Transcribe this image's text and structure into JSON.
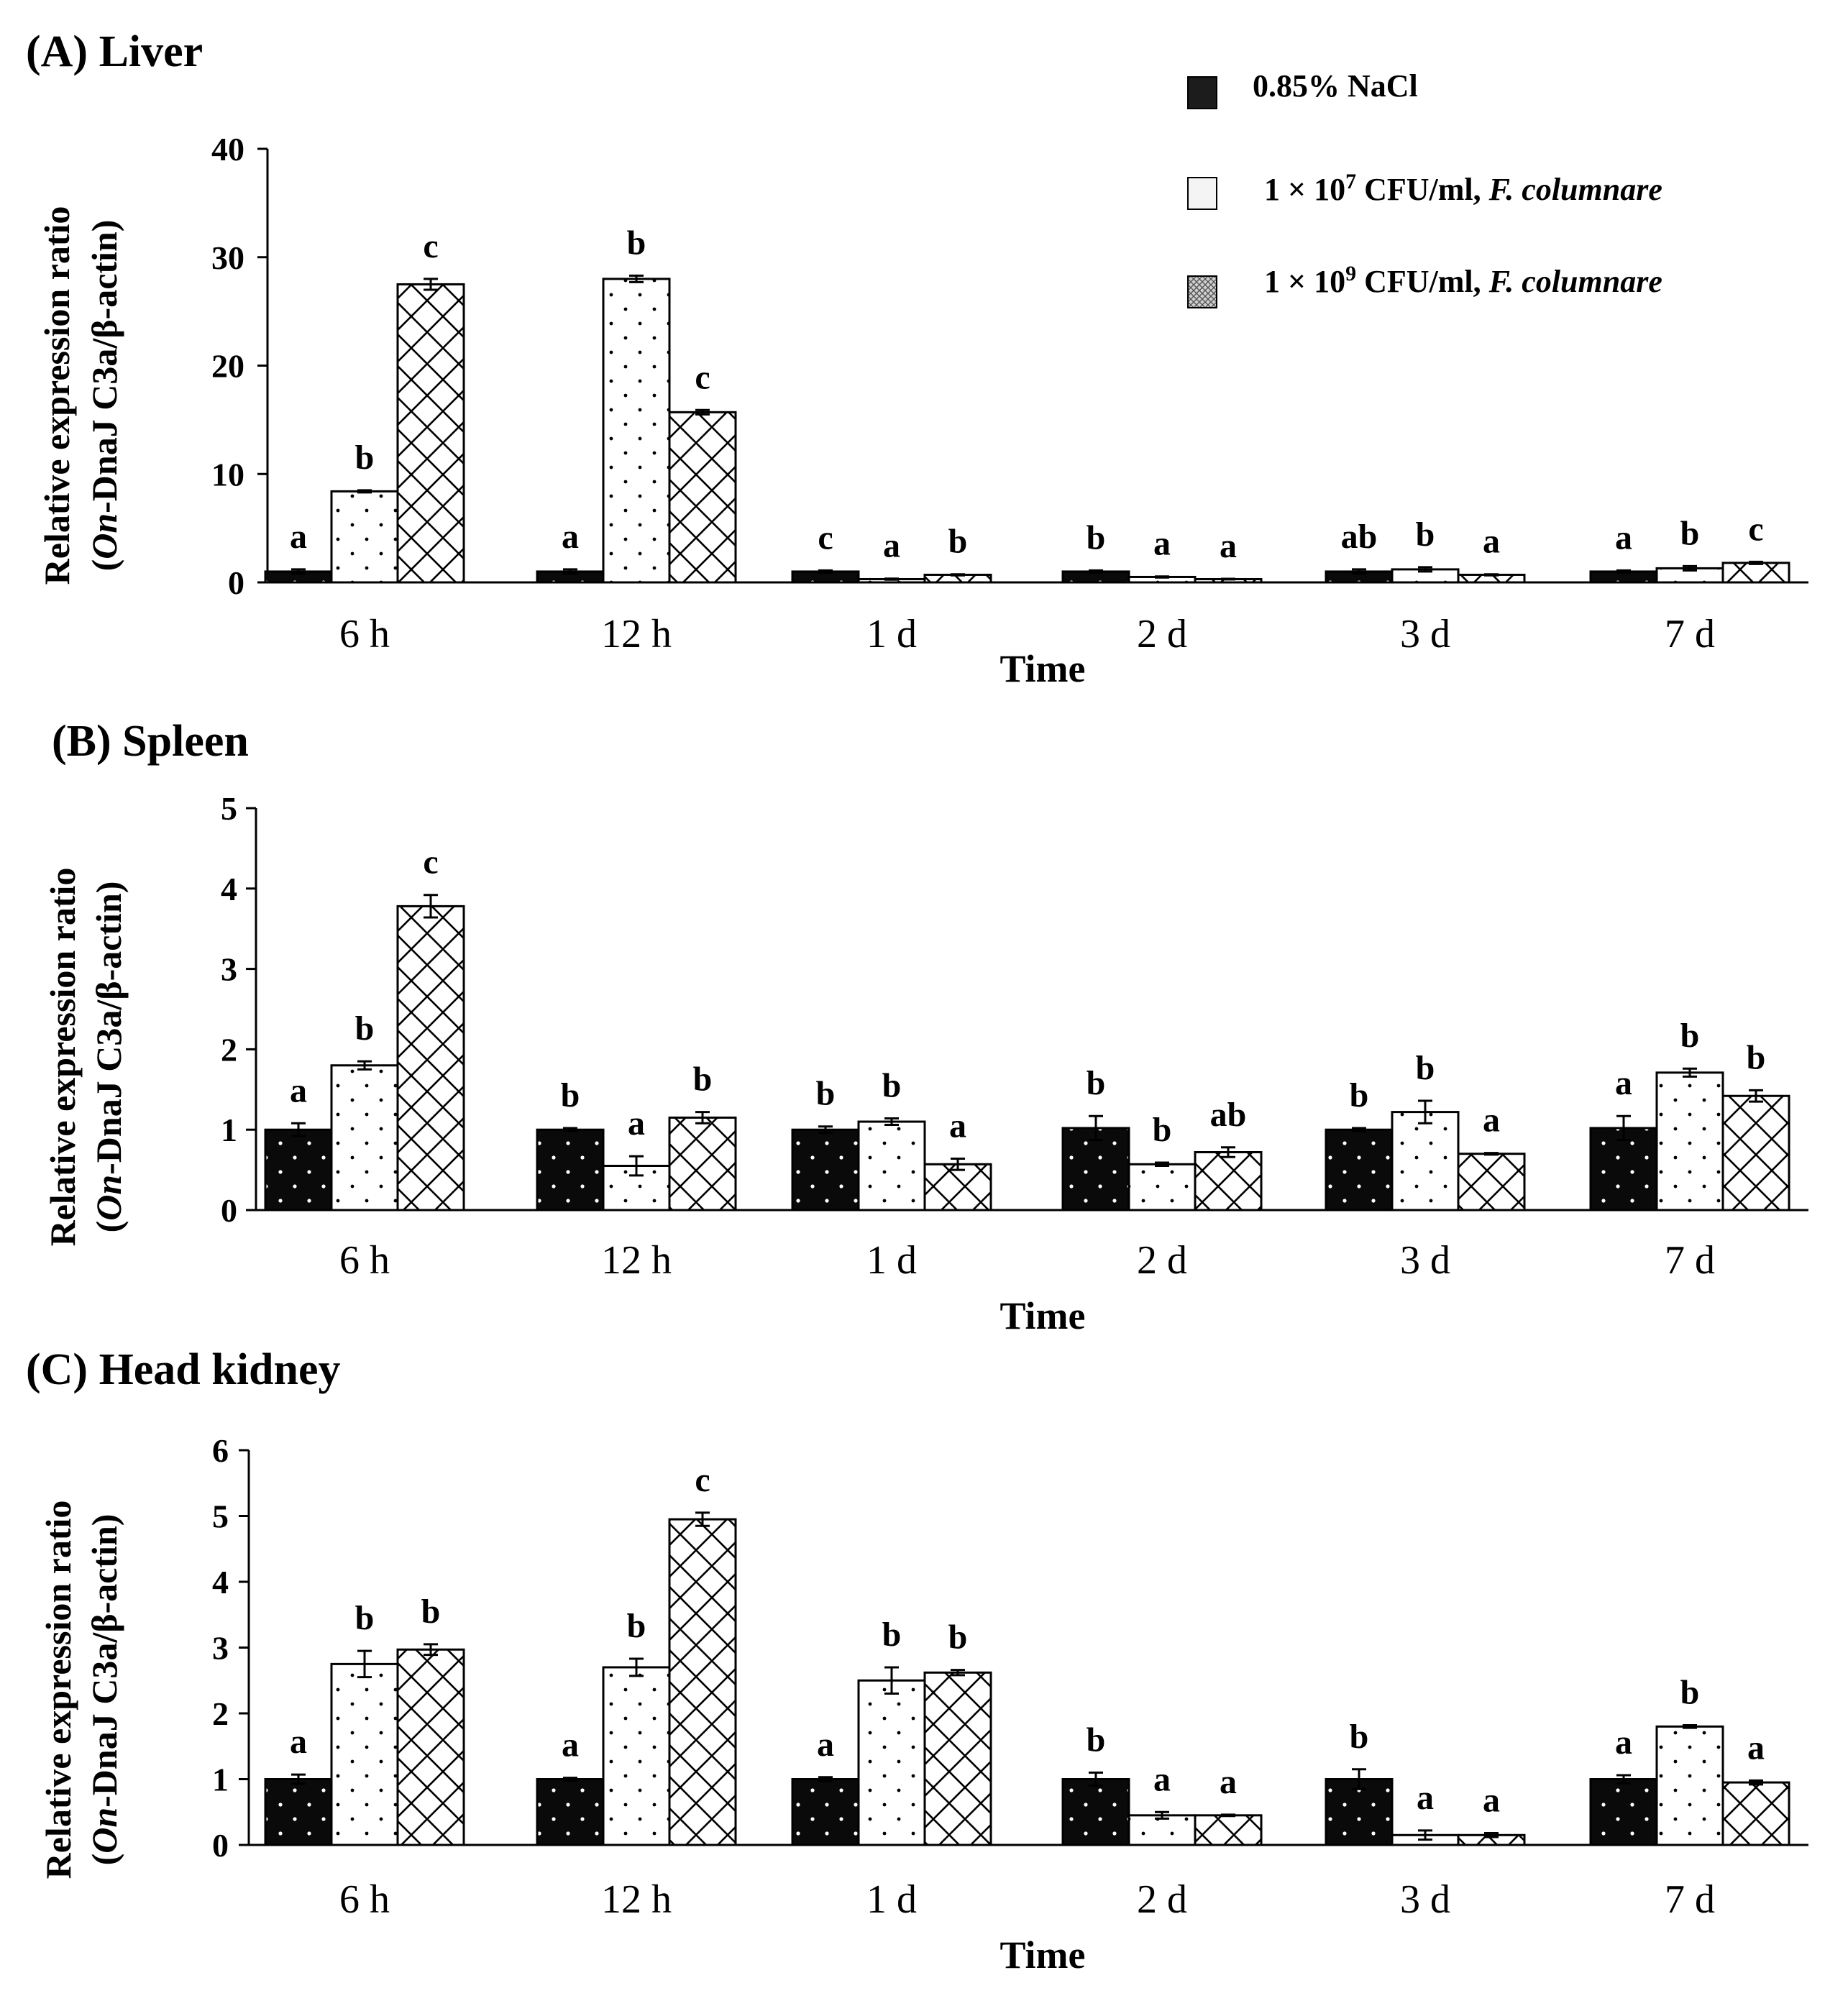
{
  "colors": {
    "nacl": "#0a0a0a",
    "low": "#ffffff",
    "high": "#ffffff",
    "axis": "#000000"
  },
  "legend": [
    {
      "id": "nacl",
      "parts": [
        {
          "t": "0.85% NaCl"
        }
      ]
    },
    {
      "id": "low",
      "parts": [
        {
          "t": "1 × 10"
        },
        {
          "t": "7",
          "sup": true
        },
        {
          "t": " CFU/ml, "
        },
        {
          "t": "F. columnare",
          "italic": true
        }
      ]
    },
    {
      "id": "high",
      "parts": [
        {
          "t": "1 × 10"
        },
        {
          "t": "9",
          "sup": true
        },
        {
          "t": " CFU/ml, "
        },
        {
          "t": "F. columnare",
          "italic": true
        }
      ]
    }
  ],
  "chart_data": [
    {
      "type": "bar",
      "title": "(A) Liver",
      "xlabel": "Time",
      "ylabel_line1": "Relative expression ratio",
      "ylabel_line2_italic": "On",
      "ylabel_line2_rest": "-DnaJ C3a/β-actin)",
      "ylabel_line2_open": "(",
      "ylim": [
        0,
        40
      ],
      "yticks": [
        0,
        10,
        20,
        30,
        40
      ],
      "categories": [
        "6 h",
        "12 h",
        "1 d",
        "2 d",
        "3 d",
        "7 d"
      ],
      "series": [
        {
          "name": "0.85% NaCl",
          "values": [
            1.0,
            1.0,
            1.0,
            1.0,
            1.0,
            1.0
          ],
          "errors": [
            0.2,
            0.2,
            0.1,
            0.1,
            0.2,
            0.1
          ],
          "letters": [
            "a",
            "a",
            "c",
            "b",
            "ab",
            "a"
          ]
        },
        {
          "name": "1 × 10^7 CFU/ml, F. columnare",
          "values": [
            8.4,
            28.0,
            0.3,
            0.5,
            1.2,
            1.3
          ],
          "errors": [
            0.1,
            0.3,
            0.05,
            0.05,
            0.2,
            0.2
          ],
          "letters": [
            "b",
            "b",
            "a",
            "a",
            "b",
            "b"
          ]
        },
        {
          "name": "1 × 10^9 CFU/ml, F. columnare",
          "values": [
            27.5,
            15.7,
            0.7,
            0.3,
            0.7,
            1.8
          ],
          "errors": [
            0.5,
            0.2,
            0.05,
            0.03,
            0.05,
            0.1
          ],
          "letters": [
            "c",
            "c",
            "b",
            "a",
            "a",
            "c"
          ]
        }
      ]
    },
    {
      "type": "bar",
      "title": "(B) Spleen",
      "xlabel": "Time",
      "ylabel_line1": "Relative expression ratio",
      "ylabel_line2_italic": "On",
      "ylabel_line2_rest": "-DnaJ C3a/β-actin)",
      "ylabel_line2_open": "(",
      "ylim": [
        0,
        5
      ],
      "yticks": [
        0,
        1,
        2,
        3,
        4,
        5
      ],
      "categories": [
        "6 h",
        "12 h",
        "1 d",
        "2 d",
        "3 d",
        "7 d"
      ],
      "series": [
        {
          "name": "0.85% NaCl",
          "values": [
            1.0,
            1.0,
            1.0,
            1.02,
            1.0,
            1.02
          ],
          "errors": [
            0.08,
            0.02,
            0.04,
            0.15,
            0.02,
            0.15
          ],
          "letters": [
            "a",
            "b",
            "b",
            "b",
            "b",
            "a"
          ]
        },
        {
          "name": "1 × 10^7 CFU/ml, F. columnare",
          "values": [
            1.8,
            0.55,
            1.1,
            0.57,
            1.22,
            1.71
          ],
          "errors": [
            0.05,
            0.12,
            0.04,
            0.02,
            0.14,
            0.05
          ],
          "letters": [
            "b",
            "a",
            "b",
            "b",
            "b",
            "b"
          ]
        },
        {
          "name": "1 × 10^9 CFU/ml, F. columnare",
          "values": [
            3.78,
            1.15,
            0.57,
            0.72,
            0.7,
            1.42
          ],
          "errors": [
            0.14,
            0.07,
            0.07,
            0.06,
            0.01,
            0.07
          ],
          "letters": [
            "c",
            "b",
            "a",
            "ab",
            "a",
            "b"
          ]
        }
      ]
    },
    {
      "type": "bar",
      "title": "(C) Head kidney",
      "xlabel": "Time",
      "ylabel_line1": "Relative expression ratio",
      "ylabel_line2_italic": "On",
      "ylabel_line2_rest": "-DnaJ C3a/β-actin)",
      "ylabel_line2_open": "(",
      "ylim": [
        0,
        6
      ],
      "yticks": [
        0,
        1,
        2,
        3,
        4,
        5,
        6
      ],
      "categories": [
        "6 h",
        "12 h",
        "1 d",
        "2 d",
        "3 d",
        "7 d"
      ],
      "series": [
        {
          "name": "0.85% NaCl",
          "values": [
            1.0,
            1.0,
            1.0,
            1.0,
            1.0,
            1.0
          ],
          "errors": [
            0.07,
            0.02,
            0.03,
            0.1,
            0.15,
            0.06
          ],
          "letters": [
            "a",
            "a",
            "a",
            "b",
            "b",
            "a"
          ]
        },
        {
          "name": "1 × 10^7 CFU/ml, F. columnare",
          "values": [
            2.75,
            2.7,
            2.5,
            0.45,
            0.15,
            1.8
          ],
          "errors": [
            0.2,
            0.13,
            0.2,
            0.05,
            0.07,
            0.02
          ],
          "letters": [
            "b",
            "b",
            "b",
            "a",
            "a",
            "b"
          ]
        },
        {
          "name": "1 × 10^9 CFU/ml, F. columnare",
          "values": [
            2.97,
            4.95,
            2.62,
            0.45,
            0.15,
            0.95
          ],
          "errors": [
            0.08,
            0.1,
            0.04,
            0.01,
            0.03,
            0.03
          ],
          "letters": [
            "b",
            "c",
            "b",
            "a",
            "a",
            "a"
          ]
        }
      ]
    }
  ]
}
